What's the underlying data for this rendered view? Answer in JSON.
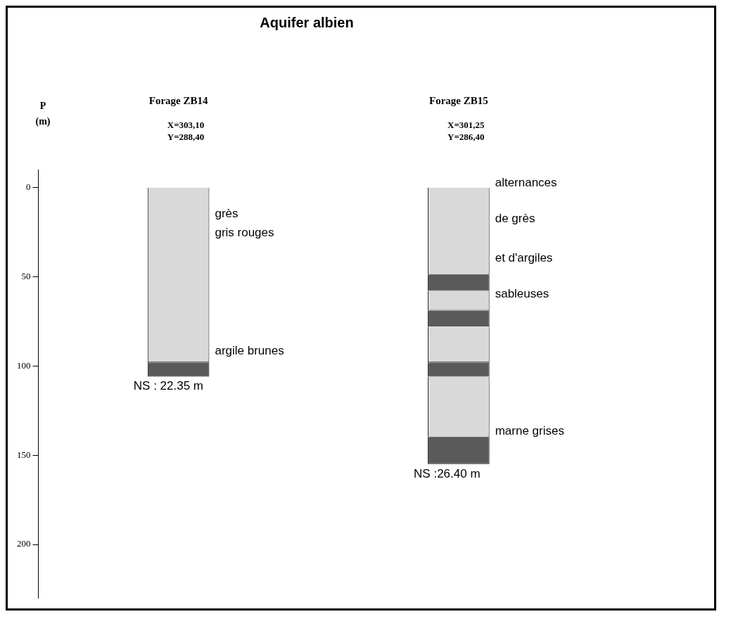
{
  "chart_data": {
    "type": "bar",
    "title": "Aquifer albien",
    "ylabel": "P (m)",
    "categories": [
      "Forage ZB14",
      "Forage ZB15"
    ],
    "stacked": true,
    "ylim": [
      230,
      -10
    ],
    "yticks": [
      0,
      50,
      100,
      150,
      200
    ],
    "grid": false,
    "legend": false,
    "series": [
      {
        "colors": [
          "#d9d9d9",
          "#d9d9d9"
        ],
        "values": [
          98,
          49
        ]
      },
      {
        "colors": [
          "#5a5a5a",
          "#5a5a5a"
        ],
        "values": [
          8,
          9
        ]
      },
      {
        "colors": [
          "#d9d9d9",
          "#d9d9d9"
        ],
        "values": [
          null,
          11
        ]
      },
      {
        "colors": [
          "#5a5a5a",
          "#5a5a5a"
        ],
        "values": [
          null,
          9
        ]
      },
      {
        "colors": [
          "#d9d9d9",
          "#d9d9d9"
        ],
        "values": [
          null,
          20
        ]
      },
      {
        "colors": [
          "#5a5a5a",
          "#5a5a5a"
        ],
        "values": [
          null,
          8
        ]
      },
      {
        "colors": [
          "#d9d9d9",
          "#d9d9d9"
        ],
        "values": [
          null,
          34
        ]
      },
      {
        "colors": [
          "#5a5a5a",
          "#5a5a5a"
        ],
        "values": [
          null,
          15
        ]
      }
    ],
    "annotations": [
      "X=303,10",
      "Y=288,40",
      "X=301,25",
      "Y=286,40",
      "grès",
      "gris rouges",
      "argile brunes",
      "alternances",
      "de grès",
      "et d'argiles",
      "sableuses",
      "marne grises",
      "NS : 22.35 m",
      "NS :26.40 m"
    ]
  }
}
